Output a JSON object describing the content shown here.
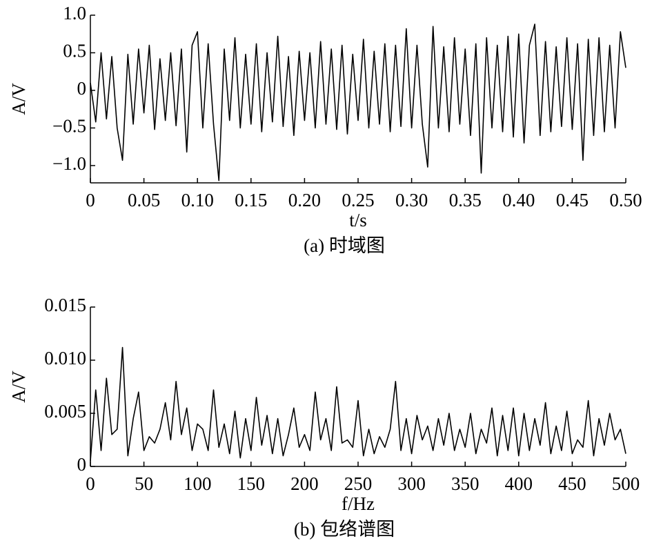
{
  "chart_data": [
    {
      "type": "line",
      "ylabel": "A/V",
      "xlabel": "t/s",
      "caption": "(a) 时域图",
      "color": "#000000",
      "xlim": [
        0,
        0.5
      ],
      "ylim": [
        -1.23,
        1.0
      ],
      "xticks": [
        0,
        0.05,
        {
          "value": 0.1,
          "label": "0.10"
        },
        0.15,
        {
          "value": 0.2,
          "label": "0.20"
        },
        0.25,
        {
          "value": 0.3,
          "label": "0.30"
        },
        0.35,
        {
          "value": 0.4,
          "label": "0.40"
        },
        0.45,
        {
          "value": 0.5,
          "label": "0.50"
        }
      ],
      "yticks": [
        {
          "value": 1,
          "label": "1.0"
        },
        0.5,
        0,
        {
          "value": -0.5,
          "label": "−0.5"
        },
        {
          "value": -1,
          "label": "−1.0"
        }
      ],
      "x": [
        0,
        0.005,
        0.01,
        0.015,
        0.02,
        0.025,
        0.03,
        0.035,
        0.04,
        0.045,
        0.05,
        0.055,
        0.06,
        0.065,
        0.07,
        0.075,
        0.08,
        0.085,
        0.09,
        0.095,
        0.1,
        0.105,
        0.11,
        0.115,
        0.12,
        0.125,
        0.13,
        0.135,
        0.14,
        0.145,
        0.15,
        0.155,
        0.16,
        0.165,
        0.17,
        0.175,
        0.18,
        0.185,
        0.19,
        0.195,
        0.2,
        0.205,
        0.21,
        0.215,
        0.22,
        0.225,
        0.23,
        0.235,
        0.24,
        0.245,
        0.25,
        0.255,
        0.26,
        0.265,
        0.27,
        0.275,
        0.28,
        0.285,
        0.29,
        0.295,
        0.3,
        0.305,
        0.31,
        0.315,
        0.32,
        0.325,
        0.33,
        0.335,
        0.34,
        0.345,
        0.35,
        0.355,
        0.36,
        0.365,
        0.37,
        0.375,
        0.38,
        0.385,
        0.39,
        0.395,
        0.4,
        0.405,
        0.41,
        0.415,
        0.42,
        0.425,
        0.43,
        0.435,
        0.44,
        0.445,
        0.45,
        0.455,
        0.46,
        0.465,
        0.47,
        0.475,
        0.48,
        0.485,
        0.49,
        0.495,
        0.5
      ],
      "values": [
        0.1,
        -0.42,
        0.5,
        -0.38,
        0.45,
        -0.5,
        -0.93,
        0.48,
        -0.45,
        0.55,
        -0.3,
        0.6,
        -0.52,
        0.42,
        -0.4,
        0.5,
        -0.47,
        0.55,
        -0.82,
        0.6,
        0.78,
        -0.5,
        0.62,
        -0.45,
        -1.2,
        0.55,
        -0.4,
        0.7,
        -0.5,
        0.48,
        -0.45,
        0.62,
        -0.55,
        0.5,
        -0.42,
        0.72,
        -0.48,
        0.45,
        -0.6,
        0.52,
        -0.4,
        0.5,
        -0.5,
        0.65,
        -0.45,
        0.55,
        -0.52,
        0.6,
        -0.58,
        0.48,
        -0.4,
        0.68,
        -0.5,
        0.52,
        -0.45,
        0.62,
        -0.55,
        0.6,
        -0.48,
        0.82,
        -0.5,
        0.6,
        -0.45,
        -1.02,
        0.85,
        -0.5,
        0.58,
        -0.55,
        0.7,
        -0.45,
        0.55,
        -0.6,
        0.62,
        -1.1,
        0.7,
        -0.5,
        0.6,
        -0.55,
        0.72,
        -0.62,
        0.75,
        -0.7,
        0.6,
        0.88,
        -0.6,
        0.65,
        -0.55,
        0.58,
        -0.48,
        0.7,
        -0.52,
        0.62,
        -0.93,
        0.68,
        -0.6,
        0.7,
        -0.55,
        0.6,
        -0.5,
        0.78,
        0.3
      ]
    },
    {
      "type": "line",
      "ylabel": "A/V",
      "xlabel": "f/Hz",
      "caption": "(b) 包络谱图",
      "color": "#000000",
      "xlim": [
        0,
        500
      ],
      "ylim": [
        0,
        0.015
      ],
      "xticks": [
        0,
        50,
        100,
        150,
        200,
        250,
        300,
        350,
        400,
        450,
        500
      ],
      "yticks": [
        0,
        0.005,
        {
          "value": 0.01,
          "label": "0.010"
        },
        0.015
      ],
      "x": [
        0,
        5,
        10,
        15,
        20,
        25,
        30,
        35,
        40,
        45,
        50,
        55,
        60,
        65,
        70,
        75,
        80,
        85,
        90,
        95,
        100,
        105,
        110,
        115,
        120,
        125,
        130,
        135,
        140,
        145,
        150,
        155,
        160,
        165,
        170,
        175,
        180,
        185,
        190,
        195,
        200,
        205,
        210,
        215,
        220,
        225,
        230,
        235,
        240,
        245,
        250,
        255,
        260,
        265,
        270,
        275,
        280,
        285,
        290,
        295,
        300,
        305,
        310,
        315,
        320,
        325,
        330,
        335,
        340,
        345,
        350,
        355,
        360,
        365,
        370,
        375,
        380,
        385,
        390,
        395,
        400,
        405,
        410,
        415,
        420,
        425,
        430,
        435,
        440,
        445,
        450,
        455,
        460,
        465,
        470,
        475,
        480,
        485,
        490,
        495,
        500
      ],
      "values": [
        0.0005,
        0.0072,
        0.0015,
        0.0083,
        0.003,
        0.0035,
        0.0112,
        0.001,
        0.0045,
        0.007,
        0.0015,
        0.0028,
        0.0022,
        0.0035,
        0.006,
        0.0025,
        0.008,
        0.003,
        0.0055,
        0.0015,
        0.004,
        0.0035,
        0.0015,
        0.0072,
        0.0018,
        0.004,
        0.0012,
        0.0052,
        0.0008,
        0.0045,
        0.0015,
        0.0065,
        0.002,
        0.0048,
        0.0012,
        0.0045,
        0.001,
        0.003,
        0.0055,
        0.0018,
        0.003,
        0.0015,
        0.007,
        0.0025,
        0.0045,
        0.0015,
        0.0075,
        0.0022,
        0.0025,
        0.0018,
        0.0062,
        0.001,
        0.0035,
        0.0012,
        0.0028,
        0.0018,
        0.0035,
        0.008,
        0.0015,
        0.0045,
        0.0012,
        0.0048,
        0.0025,
        0.0038,
        0.0015,
        0.0045,
        0.002,
        0.005,
        0.0015,
        0.0035,
        0.0018,
        0.005,
        0.0012,
        0.0035,
        0.0022,
        0.0055,
        0.001,
        0.0048,
        0.0015,
        0.0055,
        0.001,
        0.005,
        0.0015,
        0.0045,
        0.002,
        0.006,
        0.0012,
        0.0038,
        0.0015,
        0.0052,
        0.0012,
        0.0025,
        0.0018,
        0.0062,
        0.001,
        0.0045,
        0.002,
        0.005,
        0.0025,
        0.0035,
        0.0012
      ]
    }
  ]
}
